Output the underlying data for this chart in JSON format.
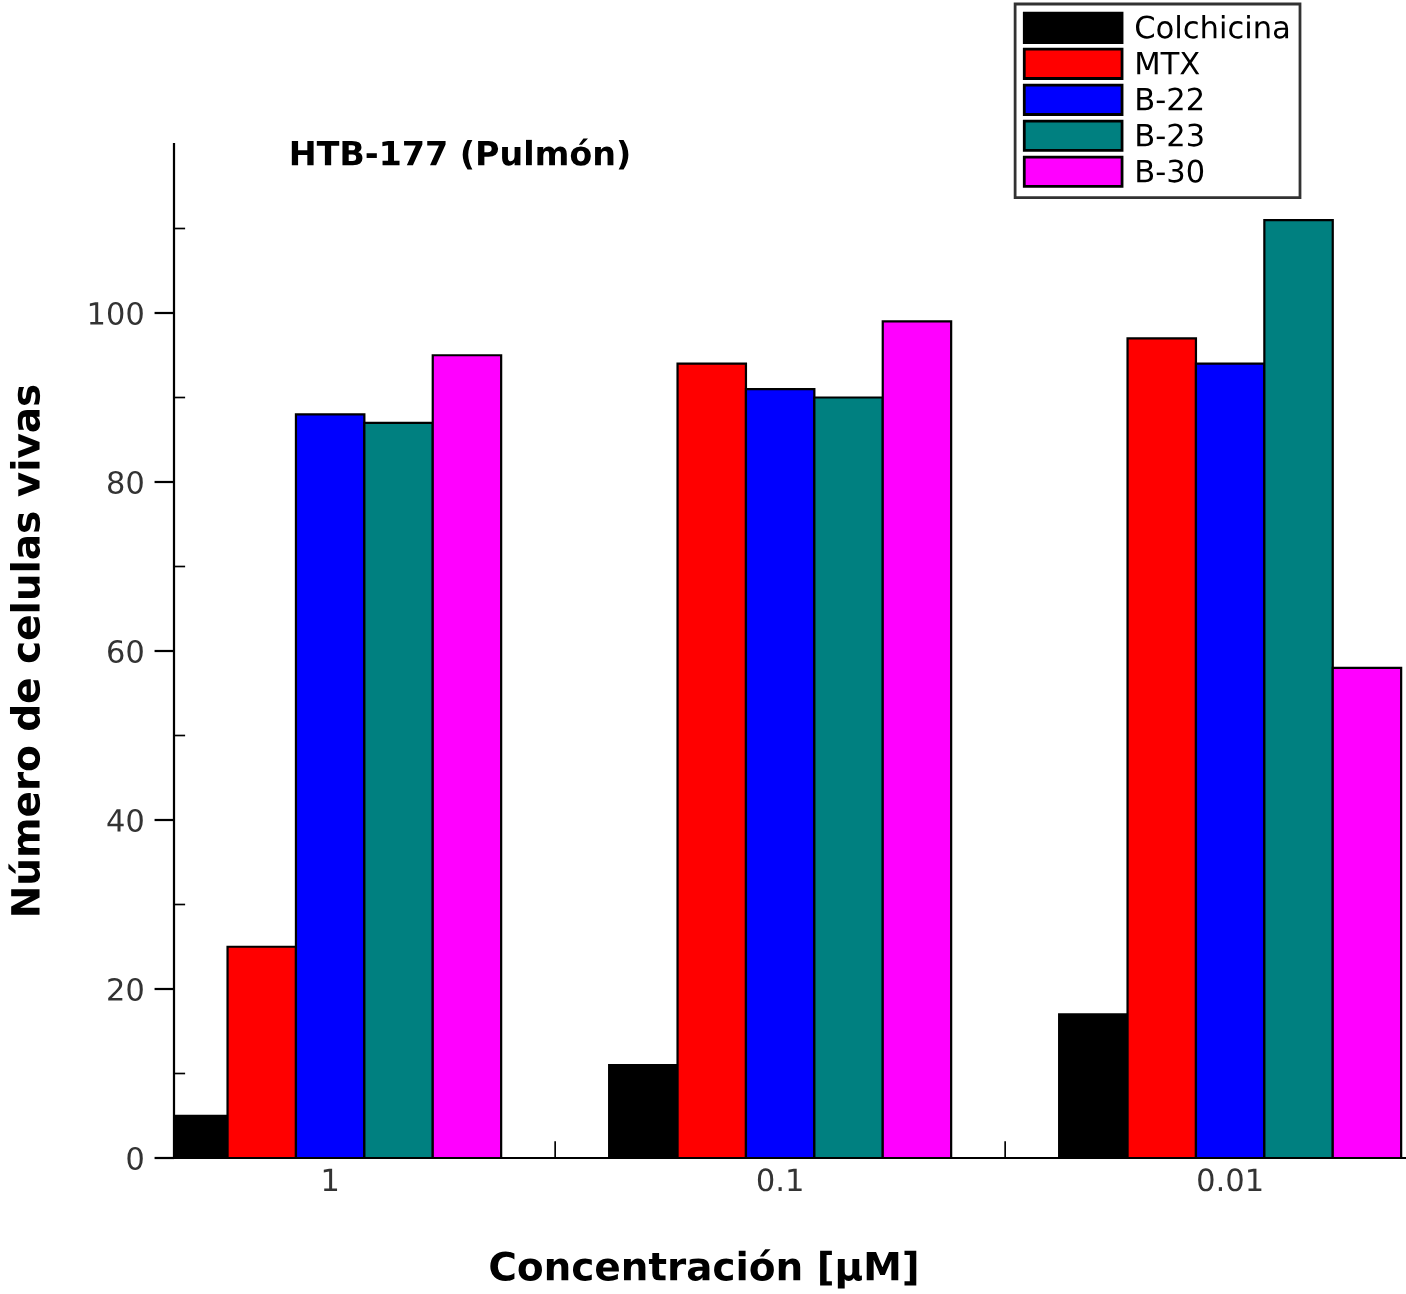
{
  "chart_data": {
    "type": "bar",
    "title": "HTB-177 (Pulmón)",
    "xlabel": "Concentración [µM]",
    "ylabel": "Número de celulas vivas",
    "categories": [
      "1",
      "0.1",
      "0.01"
    ],
    "series": [
      {
        "name": "Colchicina",
        "color": "#000000",
        "values": [
          5,
          11,
          17
        ]
      },
      {
        "name": "MTX",
        "color": "#ff0000",
        "values": [
          25,
          94,
          97
        ]
      },
      {
        "name": "B-22",
        "color": "#0000ff",
        "values": [
          88,
          91,
          94
        ]
      },
      {
        "name": "B-23",
        "color": "#008080",
        "values": [
          87,
          90,
          111
        ]
      },
      {
        "name": "B-30",
        "color": "#ff00ff",
        "values": [
          95,
          99,
          58
        ]
      }
    ],
    "ylim": [
      0,
      120
    ],
    "yticks": [
      0,
      {
        "value": 10,
        "label": null
      },
      20,
      {
        "value": 30,
        "label": null
      },
      40,
      {
        "value": 50,
        "label": null
      },
      60,
      {
        "value": 70,
        "label": null
      },
      80,
      {
        "value": 90,
        "label": null
      },
      100,
      {
        "value": 110,
        "label": null
      }
    ],
    "legend": "top right",
    "grid": false
  }
}
